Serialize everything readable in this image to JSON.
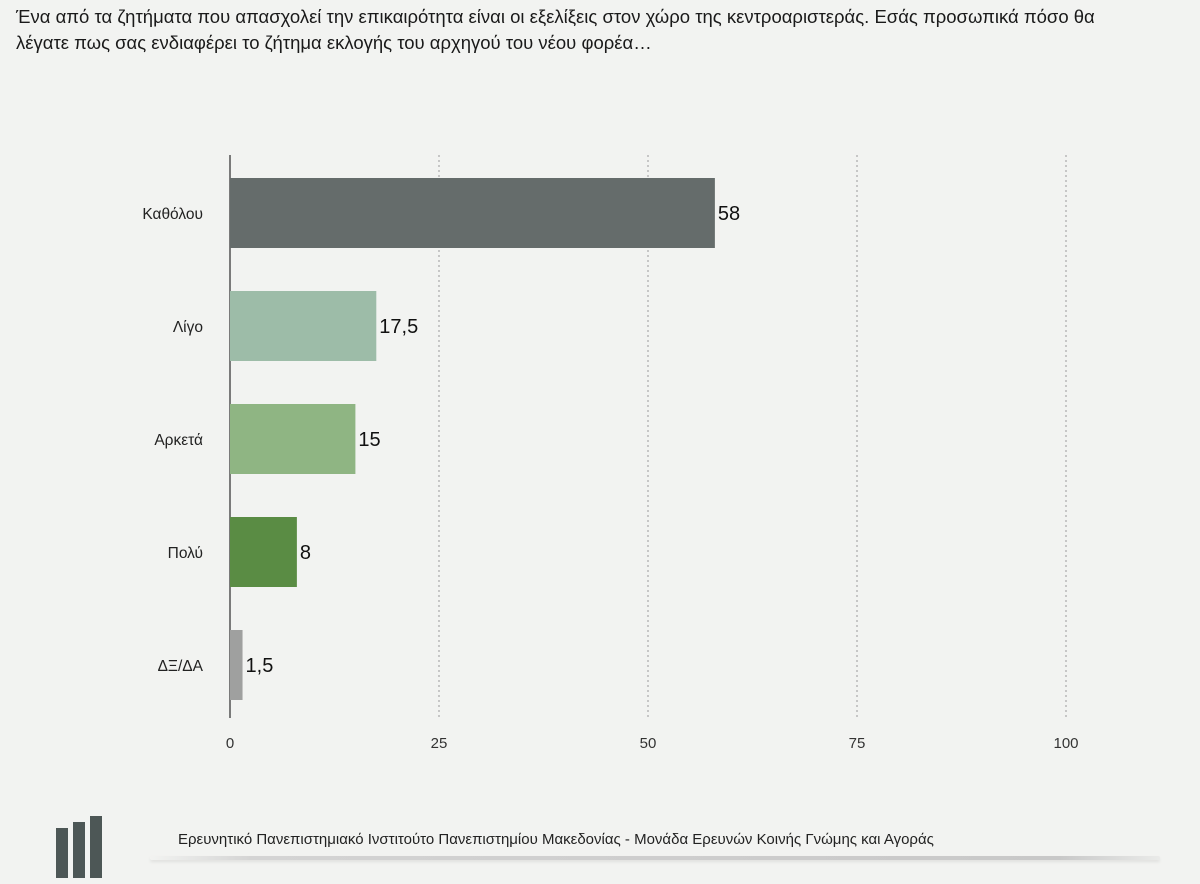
{
  "question": "Ένα από τα ζητήματα που απασχολεί την επικαιρότητα είναι οι εξελίξεις στον χώρο της κεντροαριστεράς. Εσάς προσωπικά πόσο θα λέγατε πως σας ενδιαφέρει το ζήτημα εκλογής του αρχηγού του νέου φορέα…",
  "footer": {
    "institute": "Ερευνητικό Πανεπιστημιακό Ινστιτούτο Πανεπιστημίου Μακεδονίας - Μονάδα Ερευνών Κοινής Γνώμης και Αγοράς",
    "logo_icon": "institute-logo-icon"
  },
  "chart_data": {
    "type": "bar",
    "orientation": "horizontal",
    "title": "",
    "xlabel": "",
    "ylabel": "",
    "xlim": [
      0,
      100
    ],
    "xticks": [
      0,
      25,
      50,
      75,
      100
    ],
    "grid": true,
    "categories": [
      "Καθόλου",
      "Λίγο",
      "Αρκετά",
      "Πολύ",
      "ΔΞ/ΔΑ"
    ],
    "values": [
      58,
      17.5,
      15,
      8,
      1.5
    ],
    "value_labels": [
      "58",
      "17,5",
      "15",
      "8",
      "1,5"
    ],
    "colors": [
      "#656c6b",
      "#9dbca8",
      "#8fb583",
      "#5a8c44",
      "#9fa09f"
    ]
  }
}
